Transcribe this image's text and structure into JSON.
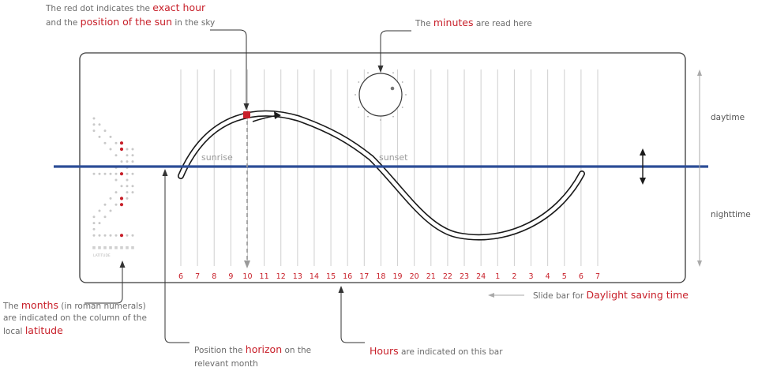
{
  "colors": {
    "accent": "#c8202a",
    "horizon": "#2c4d96",
    "grid": "#cfcfcf",
    "text": "#6b6b6b",
    "dots": "#c9c9c9"
  },
  "annotations": {
    "top_left": {
      "line1_prefix": "The red dot indicates the ",
      "line1_highlight": "exact hour",
      "line2_prefix": "and the ",
      "line2_highlight": "position of the sun",
      "line2_suffix": " in the sky"
    },
    "minutes": {
      "prefix": "The ",
      "highlight": "minutes",
      "suffix": " are read here"
    },
    "months": {
      "line1_prefix": "The ",
      "line1_highlight": "months",
      "line1_suffix": " (in roman numerals)",
      "line2": "are indicated on the column of the",
      "line3_prefix": "local ",
      "line3_highlight": "latitude"
    },
    "horizon": {
      "line1_prefix": "Position the ",
      "line1_highlight": "horizon",
      "line1_suffix": " on the",
      "line2": "relevant month"
    },
    "hours": {
      "highlight": "Hours",
      "suffix": " are indicated on this bar"
    },
    "dst": {
      "prefix": "Slide bar for ",
      "highlight": "Daylight saving time"
    }
  },
  "labels": {
    "sunrise": "sunrise",
    "sunset": "sunset",
    "daytime": "daytime",
    "nighttime": "nighttime",
    "latitude": "LATITUDE"
  },
  "hours": [
    "6",
    "7",
    "8",
    "9",
    "10",
    "11",
    "12",
    "13",
    "14",
    "15",
    "16",
    "17",
    "18",
    "19",
    "20",
    "21",
    "22",
    "23",
    "24",
    "1",
    "2",
    "3",
    "4",
    "5",
    "6",
    "7"
  ]
}
